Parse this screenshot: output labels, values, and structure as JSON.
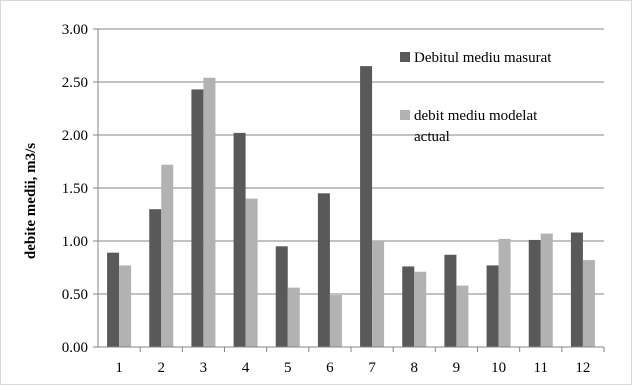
{
  "chart_data": {
    "type": "bar",
    "categories": [
      "1",
      "2",
      "3",
      "4",
      "5",
      "6",
      "7",
      "8",
      "9",
      "10",
      "11",
      "12"
    ],
    "series": [
      {
        "name": "Debitul mediu masurat",
        "color": "#595959",
        "values": [
          0.89,
          1.3,
          2.43,
          2.02,
          0.95,
          1.45,
          2.65,
          0.76,
          0.87,
          0.77,
          1.01,
          1.08
        ]
      },
      {
        "name": "debit mediu modelat actual",
        "color": "#b2b2b2",
        "values": [
          0.77,
          1.72,
          2.54,
          1.4,
          0.56,
          0.49,
          1.0,
          0.71,
          0.58,
          1.02,
          1.07,
          0.82
        ]
      }
    ],
    "title": "",
    "xlabel": "",
    "ylabel": "debite medii, m3/s",
    "ylim": [
      0,
      3.0
    ],
    "yticks": [
      "0.00",
      "0.50",
      "1.00",
      "1.50",
      "2.00",
      "2.50",
      "3.00"
    ],
    "grid": true,
    "legend_position": "right"
  }
}
